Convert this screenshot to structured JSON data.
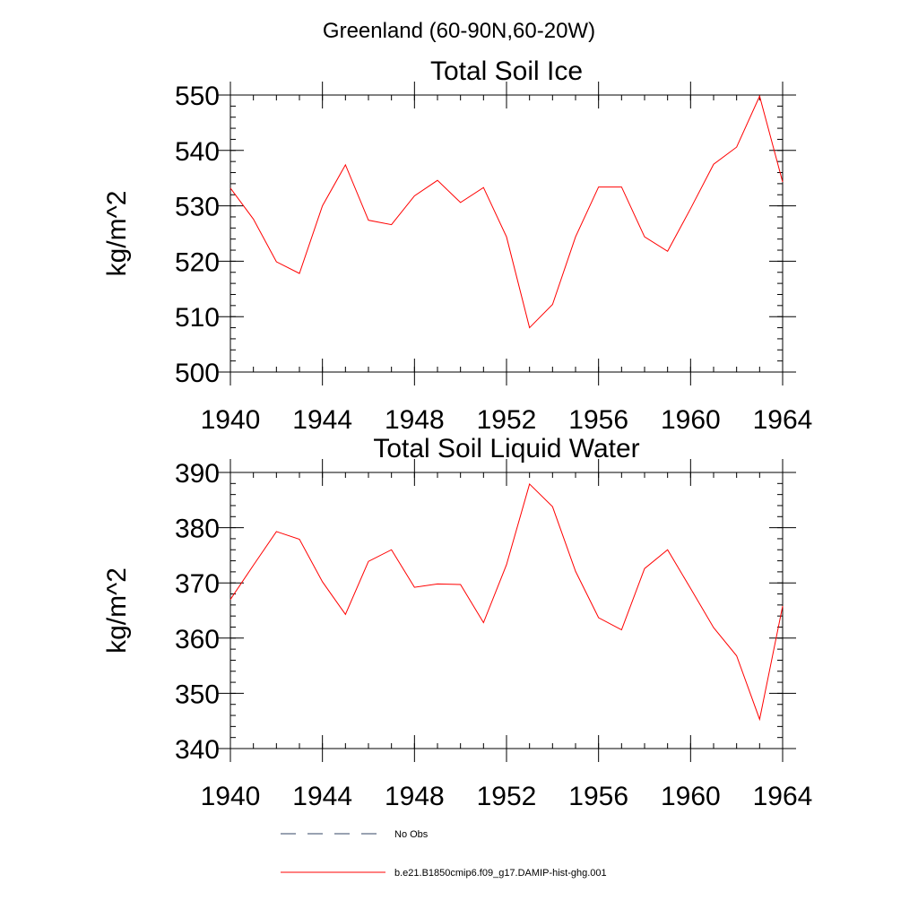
{
  "figure": {
    "suptitle": "Greenland (60-90N,60-20W)"
  },
  "legend": {
    "items": [
      {
        "label": "No Obs",
        "style": "dashed",
        "color": "#334466"
      },
      {
        "label": "b.e21.B1850cmip6.f09_g17.DAMIP-hist-ghg.001",
        "style": "solid",
        "color": "#ff0000"
      }
    ]
  },
  "chart_data": [
    {
      "type": "line",
      "title": "Total Soil Ice",
      "xlabel": "",
      "ylabel": "kg/m^2",
      "xlim": [
        1940,
        1964
      ],
      "ylim": [
        500,
        550
      ],
      "xticks": [
        1940,
        1944,
        1948,
        1952,
        1956,
        1960,
        1964
      ],
      "yticks": [
        500,
        510,
        520,
        530,
        540,
        550
      ],
      "grid": false,
      "series": [
        {
          "color": "#ff0000",
          "x": [
            1940,
            1941,
            1942,
            1943,
            1944,
            1945,
            1946,
            1947,
            1948,
            1949,
            1950,
            1951,
            1952,
            1953,
            1954,
            1955,
            1956,
            1957,
            1958,
            1959,
            1960,
            1961,
            1962,
            1963,
            1964
          ],
          "values": [
            533.2,
            527.6,
            519.9,
            517.8,
            530.0,
            537.4,
            527.4,
            526.6,
            531.8,
            534.6,
            530.6,
            533.3,
            524.4,
            508.0,
            512.2,
            524.4,
            533.4,
            533.4,
            524.4,
            521.8,
            529.5,
            537.5,
            540.6,
            549.8,
            534.3
          ]
        }
      ]
    },
    {
      "type": "line",
      "title": "Total Soil Liquid Water",
      "xlabel": "",
      "ylabel": "kg/m^2",
      "xlim": [
        1940,
        1964
      ],
      "ylim": [
        340,
        390
      ],
      "xticks": [
        1940,
        1944,
        1948,
        1952,
        1956,
        1960,
        1964
      ],
      "yticks": [
        340,
        350,
        360,
        370,
        380,
        390
      ],
      "grid": false,
      "series": [
        {
          "color": "#ff0000",
          "x": [
            1940,
            1941,
            1942,
            1943,
            1944,
            1945,
            1946,
            1947,
            1948,
            1949,
            1950,
            1951,
            1952,
            1953,
            1954,
            1955,
            1956,
            1957,
            1958,
            1959,
            1960,
            1961,
            1962,
            1963,
            1964
          ],
          "values": [
            367.0,
            373.2,
            379.3,
            377.9,
            370.2,
            364.3,
            373.9,
            376.0,
            369.2,
            369.8,
            369.7,
            362.8,
            373.3,
            387.9,
            383.8,
            372.1,
            363.7,
            361.5,
            372.6,
            376.0,
            369.0,
            361.9,
            356.8,
            345.3,
            365.8
          ]
        }
      ]
    }
  ]
}
